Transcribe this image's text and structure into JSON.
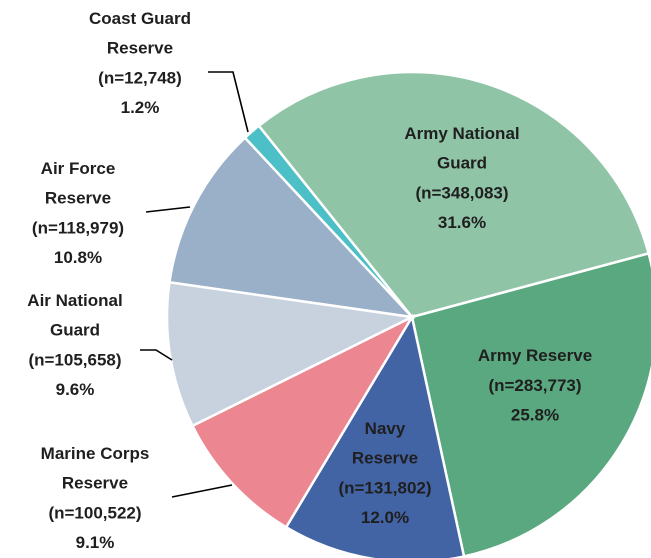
{
  "chart_data": {
    "type": "pie",
    "categories": [
      "Coast Guard Reserve",
      "Army National Guard",
      "Army Reserve",
      "Navy Reserve",
      "Marine Corps Reserve",
      "Air National Guard",
      "Air Force Reserve"
    ],
    "counts": [
      12748,
      348083,
      283773,
      131802,
      100522,
      105658,
      118979
    ],
    "count_labels": [
      "(n=12,748)",
      "(n=348,083)",
      "(n=283,773)",
      "(n=131,802)",
      "(n=100,522)",
      "(n=105,658)",
      "(n=118,979)"
    ],
    "values": [
      1.2,
      31.6,
      25.8,
      12.0,
      9.1,
      9.6,
      10.8
    ],
    "value_labels": [
      "1.2%",
      "31.6%",
      "25.8%",
      "12.0%",
      "9.1%",
      "9.6%",
      "10.8%"
    ],
    "colors": [
      "#4dbfc6",
      "#90c4a7",
      "#5aa880",
      "#4263a4",
      "#ec8690",
      "#c7d2de",
      "#9aafc8"
    ]
  }
}
